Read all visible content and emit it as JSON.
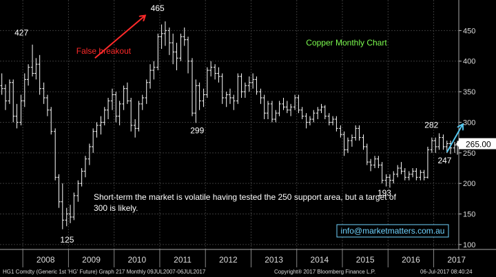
{
  "chart_data": {
    "type": "ohlc",
    "title": "Copper Monthly Chart",
    "title_color": "#7CFC4F",
    "ylim": [
      92,
      500
    ],
    "y_ticks": [
      100,
      150,
      200,
      250,
      300,
      350,
      400,
      450
    ],
    "x_years": [
      "2008",
      "2009",
      "2010",
      "2011",
      "2012",
      "2013",
      "2014",
      "2015",
      "2016",
      "2017"
    ],
    "x_range": [
      2007.5,
      2017.55
    ],
    "grid": true,
    "bar_color": "#ffffff",
    "last_price": "265.00",
    "last_price_value": 265,
    "bars": [
      {
        "t": 2007.54,
        "o": 360,
        "h": 380,
        "l": 345,
        "c": 355
      },
      {
        "t": 2007.62,
        "o": 355,
        "h": 362,
        "l": 320,
        "c": 335
      },
      {
        "t": 2007.71,
        "o": 335,
        "h": 370,
        "l": 330,
        "c": 365
      },
      {
        "t": 2007.79,
        "o": 365,
        "h": 370,
        "l": 300,
        "c": 310
      },
      {
        "t": 2007.87,
        "o": 310,
        "h": 330,
        "l": 290,
        "c": 300
      },
      {
        "t": 2007.96,
        "o": 300,
        "h": 345,
        "l": 295,
        "c": 335
      },
      {
        "t": 2008.04,
        "o": 335,
        "h": 380,
        "l": 325,
        "c": 370
      },
      {
        "t": 2008.12,
        "o": 370,
        "h": 395,
        "l": 360,
        "c": 390
      },
      {
        "t": 2008.21,
        "o": 390,
        "h": 427,
        "l": 375,
        "c": 380
      },
      {
        "t": 2008.29,
        "o": 380,
        "h": 405,
        "l": 370,
        "c": 395
      },
      {
        "t": 2008.37,
        "o": 395,
        "h": 410,
        "l": 345,
        "c": 355
      },
      {
        "t": 2008.46,
        "o": 355,
        "h": 365,
        "l": 330,
        "c": 340
      },
      {
        "t": 2008.54,
        "o": 340,
        "h": 345,
        "l": 310,
        "c": 320
      },
      {
        "t": 2008.62,
        "o": 320,
        "h": 325,
        "l": 280,
        "c": 285
      },
      {
        "t": 2008.71,
        "o": 285,
        "h": 290,
        "l": 205,
        "c": 210
      },
      {
        "t": 2008.79,
        "o": 210,
        "h": 215,
        "l": 160,
        "c": 170
      },
      {
        "t": 2008.87,
        "o": 170,
        "h": 200,
        "l": 125,
        "c": 140
      },
      {
        "t": 2008.96,
        "o": 140,
        "h": 160,
        "l": 130,
        "c": 150
      },
      {
        "t": 2009.04,
        "o": 150,
        "h": 165,
        "l": 135,
        "c": 145
      },
      {
        "t": 2009.12,
        "o": 145,
        "h": 185,
        "l": 140,
        "c": 180
      },
      {
        "t": 2009.21,
        "o": 180,
        "h": 205,
        "l": 170,
        "c": 200
      },
      {
        "t": 2009.29,
        "o": 200,
        "h": 225,
        "l": 195,
        "c": 220
      },
      {
        "t": 2009.37,
        "o": 220,
        "h": 245,
        "l": 210,
        "c": 240
      },
      {
        "t": 2009.46,
        "o": 240,
        "h": 265,
        "l": 230,
        "c": 260
      },
      {
        "t": 2009.54,
        "o": 260,
        "h": 290,
        "l": 250,
        "c": 285
      },
      {
        "t": 2009.62,
        "o": 285,
        "h": 300,
        "l": 275,
        "c": 295
      },
      {
        "t": 2009.71,
        "o": 295,
        "h": 310,
        "l": 280,
        "c": 300
      },
      {
        "t": 2009.79,
        "o": 300,
        "h": 325,
        "l": 295,
        "c": 320
      },
      {
        "t": 2009.87,
        "o": 320,
        "h": 340,
        "l": 305,
        "c": 335
      },
      {
        "t": 2009.96,
        "o": 335,
        "h": 355,
        "l": 320,
        "c": 345
      },
      {
        "t": 2010.04,
        "o": 345,
        "h": 350,
        "l": 300,
        "c": 310
      },
      {
        "t": 2010.12,
        "o": 310,
        "h": 335,
        "l": 295,
        "c": 330
      },
      {
        "t": 2010.21,
        "o": 330,
        "h": 360,
        "l": 320,
        "c": 355
      },
      {
        "t": 2010.29,
        "o": 355,
        "h": 365,
        "l": 330,
        "c": 335
      },
      {
        "t": 2010.37,
        "o": 335,
        "h": 340,
        "l": 285,
        "c": 295
      },
      {
        "t": 2010.46,
        "o": 295,
        "h": 305,
        "l": 275,
        "c": 290
      },
      {
        "t": 2010.54,
        "o": 290,
        "h": 335,
        "l": 285,
        "c": 330
      },
      {
        "t": 2010.62,
        "o": 330,
        "h": 345,
        "l": 320,
        "c": 340
      },
      {
        "t": 2010.71,
        "o": 340,
        "h": 370,
        "l": 330,
        "c": 365
      },
      {
        "t": 2010.79,
        "o": 365,
        "h": 395,
        "l": 355,
        "c": 385
      },
      {
        "t": 2010.87,
        "o": 385,
        "h": 400,
        "l": 370,
        "c": 390
      },
      {
        "t": 2010.96,
        "o": 390,
        "h": 445,
        "l": 385,
        "c": 440
      },
      {
        "t": 2011.04,
        "o": 440,
        "h": 460,
        "l": 420,
        "c": 445
      },
      {
        "t": 2011.12,
        "o": 445,
        "h": 465,
        "l": 425,
        "c": 450
      },
      {
        "t": 2011.21,
        "o": 450,
        "h": 455,
        "l": 410,
        "c": 430
      },
      {
        "t": 2011.29,
        "o": 430,
        "h": 445,
        "l": 395,
        "c": 415
      },
      {
        "t": 2011.37,
        "o": 415,
        "h": 430,
        "l": 385,
        "c": 405
      },
      {
        "t": 2011.46,
        "o": 405,
        "h": 445,
        "l": 400,
        "c": 440
      },
      {
        "t": 2011.54,
        "o": 440,
        "h": 455,
        "l": 425,
        "c": 435
      },
      {
        "t": 2011.62,
        "o": 435,
        "h": 440,
        "l": 380,
        "c": 400
      },
      {
        "t": 2011.71,
        "o": 400,
        "h": 405,
        "l": 310,
        "c": 315
      },
      {
        "t": 2011.79,
        "o": 315,
        "h": 370,
        "l": 299,
        "c": 360
      },
      {
        "t": 2011.87,
        "o": 360,
        "h": 365,
        "l": 320,
        "c": 335
      },
      {
        "t": 2011.96,
        "o": 335,
        "h": 355,
        "l": 325,
        "c": 345
      },
      {
        "t": 2012.04,
        "o": 345,
        "h": 390,
        "l": 340,
        "c": 385
      },
      {
        "t": 2012.12,
        "o": 385,
        "h": 400,
        "l": 375,
        "c": 390
      },
      {
        "t": 2012.21,
        "o": 390,
        "h": 395,
        "l": 370,
        "c": 380
      },
      {
        "t": 2012.29,
        "o": 380,
        "h": 390,
        "l": 365,
        "c": 375
      },
      {
        "t": 2012.37,
        "o": 375,
        "h": 380,
        "l": 330,
        "c": 340
      },
      {
        "t": 2012.46,
        "o": 340,
        "h": 350,
        "l": 325,
        "c": 345
      },
      {
        "t": 2012.54,
        "o": 345,
        "h": 355,
        "l": 330,
        "c": 340
      },
      {
        "t": 2012.62,
        "o": 340,
        "h": 345,
        "l": 320,
        "c": 335
      },
      {
        "t": 2012.71,
        "o": 335,
        "h": 380,
        "l": 330,
        "c": 375
      },
      {
        "t": 2012.79,
        "o": 375,
        "h": 380,
        "l": 340,
        "c": 350
      },
      {
        "t": 2012.87,
        "o": 350,
        "h": 365,
        "l": 340,
        "c": 360
      },
      {
        "t": 2012.96,
        "o": 360,
        "h": 375,
        "l": 350,
        "c": 365
      },
      {
        "t": 2013.04,
        "o": 365,
        "h": 380,
        "l": 355,
        "c": 370
      },
      {
        "t": 2013.12,
        "o": 370,
        "h": 375,
        "l": 345,
        "c": 350
      },
      {
        "t": 2013.21,
        "o": 350,
        "h": 355,
        "l": 330,
        "c": 340
      },
      {
        "t": 2013.29,
        "o": 340,
        "h": 345,
        "l": 305,
        "c": 315
      },
      {
        "t": 2013.37,
        "o": 315,
        "h": 335,
        "l": 305,
        "c": 330
      },
      {
        "t": 2013.46,
        "o": 330,
        "h": 335,
        "l": 300,
        "c": 305
      },
      {
        "t": 2013.54,
        "o": 305,
        "h": 320,
        "l": 300,
        "c": 315
      },
      {
        "t": 2013.62,
        "o": 315,
        "h": 335,
        "l": 310,
        "c": 330
      },
      {
        "t": 2013.71,
        "o": 330,
        "h": 340,
        "l": 320,
        "c": 325
      },
      {
        "t": 2013.79,
        "o": 325,
        "h": 335,
        "l": 315,
        "c": 320
      },
      {
        "t": 2013.87,
        "o": 320,
        "h": 330,
        "l": 310,
        "c": 325
      },
      {
        "t": 2013.96,
        "o": 325,
        "h": 345,
        "l": 320,
        "c": 340
      },
      {
        "t": 2014.04,
        "o": 340,
        "h": 345,
        "l": 315,
        "c": 320
      },
      {
        "t": 2014.12,
        "o": 320,
        "h": 325,
        "l": 305,
        "c": 310
      },
      {
        "t": 2014.21,
        "o": 310,
        "h": 315,
        "l": 290,
        "c": 300
      },
      {
        "t": 2014.29,
        "o": 300,
        "h": 310,
        "l": 295,
        "c": 305
      },
      {
        "t": 2014.37,
        "o": 305,
        "h": 320,
        "l": 300,
        "c": 315
      },
      {
        "t": 2014.46,
        "o": 315,
        "h": 325,
        "l": 305,
        "c": 320
      },
      {
        "t": 2014.54,
        "o": 320,
        "h": 330,
        "l": 315,
        "c": 325
      },
      {
        "t": 2014.62,
        "o": 325,
        "h": 328,
        "l": 305,
        "c": 310
      },
      {
        "t": 2014.71,
        "o": 310,
        "h": 315,
        "l": 295,
        "c": 300
      },
      {
        "t": 2014.79,
        "o": 300,
        "h": 310,
        "l": 295,
        "c": 305
      },
      {
        "t": 2014.87,
        "o": 305,
        "h": 310,
        "l": 285,
        "c": 290
      },
      {
        "t": 2014.96,
        "o": 290,
        "h": 295,
        "l": 275,
        "c": 280
      },
      {
        "t": 2015.04,
        "o": 280,
        "h": 285,
        "l": 245,
        "c": 255
      },
      {
        "t": 2015.12,
        "o": 255,
        "h": 275,
        "l": 250,
        "c": 270
      },
      {
        "t": 2015.21,
        "o": 270,
        "h": 280,
        "l": 260,
        "c": 275
      },
      {
        "t": 2015.29,
        "o": 275,
        "h": 295,
        "l": 270,
        "c": 290
      },
      {
        "t": 2015.37,
        "o": 290,
        "h": 295,
        "l": 270,
        "c": 275
      },
      {
        "t": 2015.46,
        "o": 275,
        "h": 280,
        "l": 255,
        "c": 260
      },
      {
        "t": 2015.54,
        "o": 260,
        "h": 265,
        "l": 230,
        "c": 235
      },
      {
        "t": 2015.62,
        "o": 235,
        "h": 240,
        "l": 220,
        "c": 230
      },
      {
        "t": 2015.71,
        "o": 230,
        "h": 245,
        "l": 225,
        "c": 240
      },
      {
        "t": 2015.79,
        "o": 240,
        "h": 245,
        "l": 225,
        "c": 230
      },
      {
        "t": 2015.87,
        "o": 230,
        "h": 235,
        "l": 200,
        "c": 205
      },
      {
        "t": 2015.96,
        "o": 205,
        "h": 215,
        "l": 195,
        "c": 210
      },
      {
        "t": 2016.04,
        "o": 210,
        "h": 215,
        "l": 193,
        "c": 205
      },
      {
        "t": 2016.12,
        "o": 205,
        "h": 220,
        "l": 200,
        "c": 215
      },
      {
        "t": 2016.21,
        "o": 215,
        "h": 230,
        "l": 210,
        "c": 225
      },
      {
        "t": 2016.29,
        "o": 225,
        "h": 235,
        "l": 215,
        "c": 220
      },
      {
        "t": 2016.37,
        "o": 220,
        "h": 225,
        "l": 205,
        "c": 210
      },
      {
        "t": 2016.46,
        "o": 210,
        "h": 220,
        "l": 205,
        "c": 215
      },
      {
        "t": 2016.54,
        "o": 215,
        "h": 225,
        "l": 210,
        "c": 220
      },
      {
        "t": 2016.62,
        "o": 220,
        "h": 225,
        "l": 205,
        "c": 210
      },
      {
        "t": 2016.71,
        "o": 210,
        "h": 222,
        "l": 205,
        "c": 218
      },
      {
        "t": 2016.79,
        "o": 218,
        "h": 222,
        "l": 205,
        "c": 210
      },
      {
        "t": 2016.87,
        "o": 210,
        "h": 260,
        "l": 208,
        "c": 255
      },
      {
        "t": 2016.96,
        "o": 255,
        "h": 275,
        "l": 250,
        "c": 270
      },
      {
        "t": 2017.04,
        "o": 270,
        "h": 275,
        "l": 250,
        "c": 260
      },
      {
        "t": 2017.12,
        "o": 260,
        "h": 282,
        "l": 255,
        "c": 275
      },
      {
        "t": 2017.21,
        "o": 275,
        "h": 280,
        "l": 255,
        "c": 260
      },
      {
        "t": 2017.29,
        "o": 260,
        "h": 270,
        "l": 250,
        "c": 265
      },
      {
        "t": 2017.37,
        "o": 265,
        "h": 270,
        "l": 248,
        "c": 258
      },
      {
        "t": 2017.46,
        "o": 258,
        "h": 268,
        "l": 250,
        "c": 263
      },
      {
        "t": 2017.52,
        "o": 263,
        "h": 270,
        "l": 247,
        "c": 265
      }
    ],
    "annotations": [
      {
        "text": "427",
        "t": 2007.97,
        "v": 442,
        "color": "#ffffff"
      },
      {
        "text": "465",
        "t": 2010.95,
        "v": 482,
        "color": "#ffffff"
      },
      {
        "text": "False breakout",
        "t": 2009.77,
        "v": 412,
        "color": "#ff2a2a"
      },
      {
        "text": "299",
        "t": 2011.82,
        "v": 282,
        "color": "#ffffff"
      },
      {
        "text": "125",
        "t": 2008.97,
        "v": 103,
        "color": "#ffffff"
      },
      {
        "text": "193",
        "t": 2015.92,
        "v": 180,
        "color": "#ffffff"
      },
      {
        "text": "282",
        "t": 2016.95,
        "v": 291,
        "color": "#ffffff"
      },
      {
        "text": "247",
        "t": 2017.24,
        "v": 233,
        "color": "#ffffff"
      }
    ],
    "comment_lines": [
      "Short-term the market is volatile having tested the 250 support area, but a target of",
      "300 is likely."
    ],
    "watermark": "info@marketmatters.com.au",
    "arrows": [
      {
        "name": "red-arrow",
        "from": [
          2009.58,
          405
        ],
        "to": [
          2010.67,
          474
        ],
        "color": "#ff2a2a"
      },
      {
        "name": "blue-arrow",
        "from": [
          2017.29,
          251
        ],
        "to": [
          2017.63,
          296
        ],
        "color": "#55c8f0"
      }
    ]
  },
  "footer": {
    "left": "HG1 Comdty (Generic 1st 'HG' Future) Graph 217  Monthly 09JUL2007-06JUL2017",
    "center": "Copyright® 2017 Bloomberg Finance L.P.",
    "right": "06-Jul-2017 08:40:24"
  }
}
